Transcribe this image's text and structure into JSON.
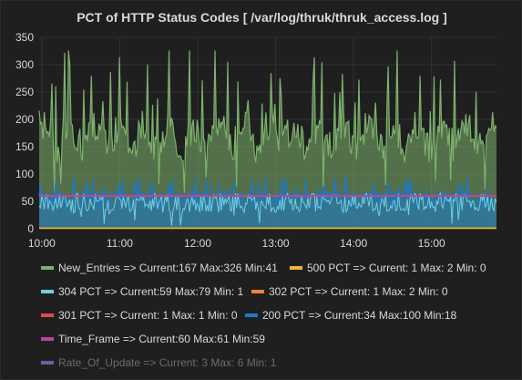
{
  "panel": {
    "title": "PCT of HTTP Status Codes [ /var/log/thruk/thruk_access.log ]"
  },
  "chart_data": {
    "type": "line",
    "title": "PCT of HTTP Status Codes [ /var/log/thruk/thruk_access.log ]",
    "xlabel": "",
    "ylabel": "",
    "x_range": [
      "09:58",
      "15:50"
    ],
    "x_ticks": [
      "10:00",
      "11:00",
      "12:00",
      "13:00",
      "14:00",
      "15:00"
    ],
    "y_ticks": [
      "0",
      "50",
      "100",
      "150",
      "200",
      "250",
      "300",
      "350"
    ],
    "ylim": [
      0,
      350
    ],
    "grid": true,
    "legend_position": "bottom",
    "series": [
      {
        "name": "New_Entries",
        "legend": "New_Entries => Current:167 Max:326 Min:41",
        "color": "#7eb26d",
        "style": "area",
        "current": 167,
        "max": 326,
        "min": 41
      },
      {
        "name": "500 PCT",
        "legend": "500 PCT => Current: 1 Max: 2 Min: 0",
        "color": "#eab839",
        "style": "line",
        "current": 1,
        "max": 2,
        "min": 0
      },
      {
        "name": "304 PCT",
        "legend": "304 PCT => Current:59 Max:79 Min: 1",
        "color": "#6ed0e0",
        "style": "line",
        "current": 59,
        "max": 79,
        "min": 1
      },
      {
        "name": "302 PCT",
        "legend": "302 PCT => Current: 1 Max: 2 Min: 0",
        "color": "#ef843c",
        "style": "line",
        "current": 1,
        "max": 2,
        "min": 0
      },
      {
        "name": "301 PCT",
        "legend": "301 PCT => Current: 1 Max: 1 Min: 0",
        "color": "#e24d42",
        "style": "line",
        "current": 1,
        "max": 1,
        "min": 0
      },
      {
        "name": "200 PCT",
        "legend": "200 PCT => Current:34 Max:100 Min:18",
        "color": "#1f78c1",
        "style": "area",
        "current": 34,
        "max": 100,
        "min": 18
      },
      {
        "name": "Time_Frame",
        "legend": "Time_Frame => Current:60 Max:61 Min:59",
        "color": "#ba43a9",
        "style": "line",
        "current": 60,
        "max": 61,
        "min": 59
      },
      {
        "name": "Rate_Of_Update",
        "legend": "Rate_Of_Update => Current: 3 Max: 6 Min: 1",
        "color": "#705da0",
        "style": "line",
        "current": 3,
        "max": 6,
        "min": 1,
        "hidden": true
      }
    ]
  }
}
